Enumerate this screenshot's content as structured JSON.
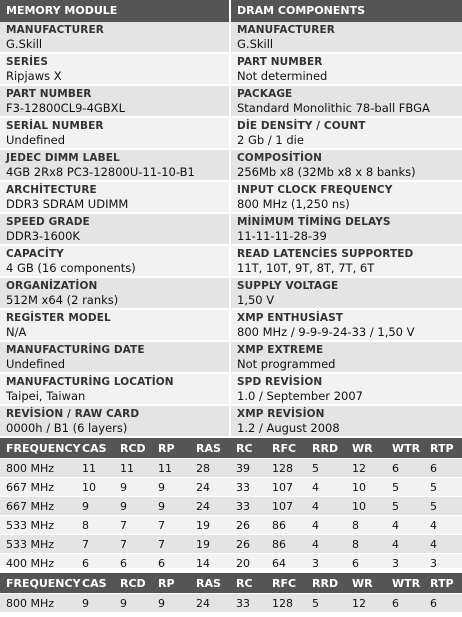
{
  "headers": {
    "left": "MEMORY MODULE",
    "right": "DRAM COMPONENTS"
  },
  "rows": [
    {
      "l_label": "MANUFACTURER",
      "l_value": "G.Skill",
      "r_label": "MANUFACTURER",
      "r_value": "G.Skill"
    },
    {
      "l_label": "SERİES",
      "l_value": "Ripjaws X",
      "r_label": "PART NUMBER",
      "r_value": "Not determined"
    },
    {
      "l_label": "PART NUMBER",
      "l_value": "F3-12800CL9-4GBXL",
      "r_label": "PACKAGE",
      "r_value": "Standard Monolithic 78-ball FBGA"
    },
    {
      "l_label": "SERİAL NUMBER",
      "l_value": "Undefined",
      "r_label": "DİE DENSİTY / COUNT",
      "r_value": "2 Gb / 1 die"
    },
    {
      "l_label": "JEDEC DIMM LABEL",
      "l_value": "4GB 2Rx8 PC3-12800U-11-10-B1",
      "r_label": "COMPOSİTİON",
      "r_value": "256Mb x8 (32Mb x8 x 8 banks)"
    },
    {
      "l_label": "ARCHİTECTURE",
      "l_value": "DDR3 SDRAM UDIMM",
      "r_label": "INPUT CLOCK FREQUENCY",
      "r_value": "800 MHz (1,250 ns)"
    },
    {
      "l_label": "SPEED GRADE",
      "l_value": "DDR3-1600K",
      "r_label": "MİNİMUM TİMİNG DELAYS",
      "r_value": "11-11-11-28-39"
    },
    {
      "l_label": "CAPACİTY",
      "l_value": "4 GB (16 components)",
      "r_label": "READ LATENCİES SUPPORTED",
      "r_value": "11T, 10T, 9T, 8T, 7T, 6T"
    },
    {
      "l_label": "ORGANİZATİON",
      "l_value": "512M x64 (2 ranks)",
      "r_label": "SUPPLY VOLTAGE",
      "r_value": "1,50 V"
    },
    {
      "l_label": "REGİSTER MODEL",
      "l_value": "N/A",
      "r_label": "XMP ENTHUSİAST",
      "r_value": "800 MHz / 9-9-9-24-33 / 1,50 V"
    },
    {
      "l_label": "MANUFACTURİNG DATE",
      "l_value": "Undefined",
      "r_label": "XMP EXTREME",
      "r_value": "Not programmed"
    },
    {
      "l_label": "MANUFACTURİNG LOCATİON",
      "l_value": "Taipei, Taiwan",
      "r_label": "SPD REVİSİON",
      "r_value": "1.0 / September 2007"
    },
    {
      "l_label": "REVİSİON / RAW CARD",
      "l_value": "0000h / B1 (6 layers)",
      "r_label": "XMP REVİSİON",
      "r_value": "1.2 / August 2008"
    }
  ],
  "timing_header": [
    "FREQUENCY",
    "CAS",
    "RCD",
    "RP",
    "RAS",
    "RC",
    "RFC",
    "RRD",
    "WR",
    "WTR",
    "RTP"
  ],
  "timing_rows": [
    [
      "800 MHz",
      "11",
      "11",
      "11",
      "28",
      "39",
      "128",
      "5",
      "12",
      "6",
      "6"
    ],
    [
      "667 MHz",
      "10",
      "9",
      "9",
      "24",
      "33",
      "107",
      "4",
      "10",
      "5",
      "5"
    ],
    [
      "667 MHz",
      "9",
      "9",
      "9",
      "24",
      "33",
      "107",
      "4",
      "10",
      "5",
      "5"
    ],
    [
      "533 MHz",
      "8",
      "7",
      "7",
      "19",
      "26",
      "86",
      "4",
      "8",
      "4",
      "4"
    ],
    [
      "533 MHz",
      "7",
      "7",
      "7",
      "19",
      "26",
      "86",
      "4",
      "8",
      "4",
      "4"
    ],
    [
      "400 MHz",
      "6",
      "6",
      "6",
      "14",
      "20",
      "64",
      "3",
      "6",
      "3",
      "3"
    ]
  ],
  "xmp_header": [
    "FREQUENCY",
    "CAS",
    "RCD",
    "RP",
    "RAS",
    "RC",
    "RFC",
    "RRD",
    "WR",
    "WTR",
    "RTP"
  ],
  "xmp_rows": [
    [
      "800 MHz",
      "9",
      "9",
      "9",
      "24",
      "33",
      "128",
      "5",
      "12",
      "6",
      "6"
    ]
  ]
}
